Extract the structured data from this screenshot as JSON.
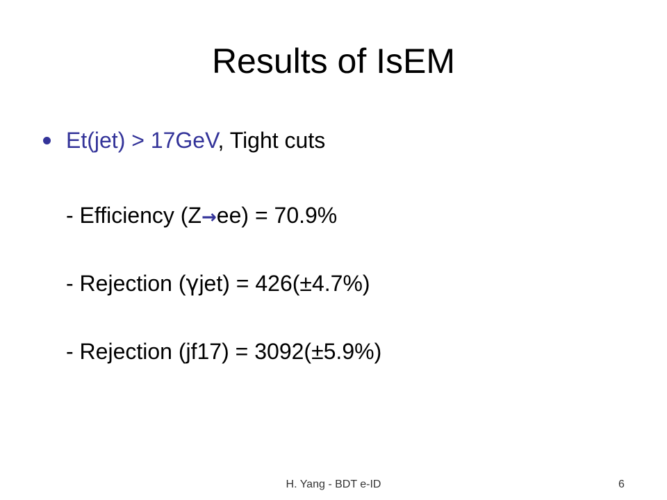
{
  "slide": {
    "title": "Results of IsEM",
    "bullet": {
      "highlight": "Et(jet) > 17GeV",
      "rest": ", Tight cuts"
    },
    "lines": [
      {
        "parts": [
          "- Efficiency (Z",
          "→",
          "ee) = 70.9%"
        ]
      },
      {
        "parts": [
          "- Rejection (",
          "γ",
          "jet) = 426(±4.7%)"
        ]
      },
      {
        "parts": [
          "- Rejection (jf17) = 3092(±5.9%)"
        ]
      }
    ]
  },
  "footer": {
    "text": "H. Yang - BDT e-ID",
    "page": "6"
  }
}
